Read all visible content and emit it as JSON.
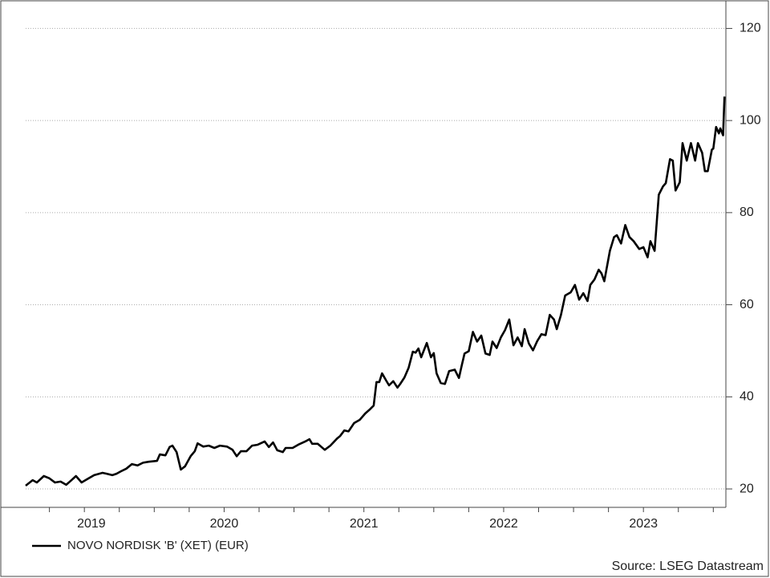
{
  "chart_data": {
    "type": "line",
    "source": "Source: LSEG Datastream",
    "xlim": [
      2019.08,
      2024.09
    ],
    "xticks": [
      {
        "value": 2019.55,
        "label": "2019"
      },
      {
        "value": 2020.5,
        "label": "2020"
      },
      {
        "value": 2021.5,
        "label": "2021"
      },
      {
        "value": 2022.5,
        "label": "2022"
      },
      {
        "value": 2023.5,
        "label": "2023"
      }
    ],
    "xminorticks": [
      2019.25,
      2019.5,
      2019.75,
      2020,
      2020.25,
      2020.5,
      2020.75,
      2021,
      2021.25,
      2021.5,
      2021.75,
      2022,
      2022.25,
      2022.5,
      2022.75,
      2023,
      2023.25,
      2023.5,
      2023.75,
      2024
    ],
    "ylim": [
      16,
      126
    ],
    "yticks": [
      20,
      40,
      60,
      80,
      100,
      120
    ],
    "grid": true,
    "legend": "bottom-left",
    "x": [
      2019.08,
      2019.13,
      2019.16,
      2019.21,
      2019.25,
      2019.29,
      2019.33,
      2019.37,
      2019.4,
      2019.44,
      2019.48,
      2019.53,
      2019.57,
      2019.63,
      2019.66,
      2019.7,
      2019.73,
      2019.76,
      2019.8,
      2019.84,
      2019.88,
      2019.92,
      2019.96,
      2020.02,
      2020.04,
      2020.08,
      2020.11,
      2020.13,
      2020.16,
      2020.19,
      2020.22,
      2020.26,
      2020.29,
      2020.31,
      2020.35,
      2020.39,
      2020.43,
      2020.47,
      2020.52,
      2020.56,
      2020.59,
      2020.62,
      2020.66,
      2020.7,
      2020.74,
      2020.79,
      2020.82,
      2020.85,
      2020.88,
      2020.92,
      2020.94,
      2020.99,
      2021.03,
      2021.08,
      2021.11,
      2021.13,
      2021.17,
      2021.22,
      2021.26,
      2021.31,
      2021.33,
      2021.36,
      2021.39,
      2021.43,
      2021.47,
      2021.51,
      2021.54,
      2021.57,
      2021.59,
      2021.61,
      2021.63,
      2021.66,
      2021.68,
      2021.71,
      2021.74,
      2021.76,
      2021.79,
      2021.82,
      2021.85,
      2021.87,
      2021.89,
      2021.91,
      2021.95,
      2021.98,
      2022.0,
      2022.02,
      2022.05,
      2022.08,
      2022.11,
      2022.15,
      2022.18,
      2022.2,
      2022.22,
      2022.25,
      2022.28,
      2022.31,
      2022.34,
      2022.37,
      2022.4,
      2022.42,
      2022.45,
      2022.48,
      2022.51,
      2022.54,
      2022.57,
      2022.6,
      2022.63,
      2022.65,
      2022.68,
      2022.71,
      2022.74,
      2022.77,
      2022.8,
      2022.83,
      2022.86,
      2022.88,
      2022.91,
      2022.94,
      2022.98,
      2023.01,
      2023.04,
      2023.07,
      2023.1,
      2023.12,
      2023.15,
      2023.18,
      2023.2,
      2023.22,
      2023.26,
      2023.29,
      2023.31,
      2023.34,
      2023.37,
      2023.4,
      2023.43,
      2023.47,
      2023.5,
      2023.53,
      2023.55,
      2023.58,
      2023.61,
      2023.64,
      2023.66,
      2023.69,
      2023.71,
      2023.73,
      2023.76,
      2023.78,
      2023.81,
      2023.84,
      2023.87,
      2023.89,
      2023.92,
      2023.94,
      2023.96,
      2023.99,
      2024.0,
      2024.02,
      2024.04,
      2024.05,
      2024.07,
      2024.08
    ],
    "series": [
      {
        "name": "NOVO NORDISK 'B' (XET) (EUR)",
        "color": "#000000",
        "values": [
          20.7,
          21.9,
          21.4,
          22.8,
          22.3,
          21.4,
          21.6,
          20.9,
          21.7,
          22.8,
          21.4,
          22.3,
          23.0,
          23.5,
          23.3,
          23.0,
          23.3,
          23.8,
          24.4,
          25.4,
          25.1,
          25.7,
          25.9,
          26.1,
          27.5,
          27.3,
          29.1,
          29.4,
          28.0,
          24.2,
          24.9,
          27.1,
          28.2,
          29.9,
          29.2,
          29.4,
          28.9,
          29.4,
          29.2,
          28.5,
          27.1,
          28.2,
          28.2,
          29.4,
          29.6,
          30.3,
          29.1,
          30.1,
          28.4,
          28.0,
          28.9,
          28.9,
          29.6,
          30.3,
          30.8,
          29.8,
          29.8,
          28.5,
          29.4,
          31.0,
          31.5,
          32.7,
          32.5,
          34.3,
          35.0,
          36.4,
          37.2,
          38.1,
          43.2,
          43.2,
          45.1,
          43.5,
          42.5,
          43.4,
          42.0,
          42.8,
          44.2,
          46.3,
          49.8,
          49.6,
          50.5,
          48.6,
          51.7,
          48.6,
          49.5,
          45.1,
          43.0,
          42.8,
          45.6,
          45.9,
          44.1,
          46.8,
          49.4,
          49.9,
          54.1,
          52.0,
          53.3,
          49.4,
          49.1,
          52.0,
          50.6,
          52.9,
          54.5,
          56.8,
          51.2,
          52.9,
          51.0,
          54.7,
          51.6,
          50.1,
          52.1,
          53.6,
          53.4,
          57.8,
          56.8,
          54.7,
          57.8,
          62.0,
          62.7,
          64.3,
          61.1,
          62.5,
          60.8,
          64.3,
          65.5,
          67.6,
          66.8,
          65.1,
          71.7,
          74.7,
          75.1,
          73.3,
          77.3,
          74.7,
          73.8,
          72.1,
          72.5,
          70.3,
          73.8,
          71.7,
          83.9,
          85.7,
          86.4,
          91.6,
          91.3,
          84.8,
          86.6,
          95.1,
          91.3,
          95.1,
          91.3,
          95.1,
          93.0,
          89.0,
          89.0,
          93.7,
          93.9,
          98.6,
          97.2,
          98.3,
          96.8,
          105.2
        ]
      }
    ]
  }
}
